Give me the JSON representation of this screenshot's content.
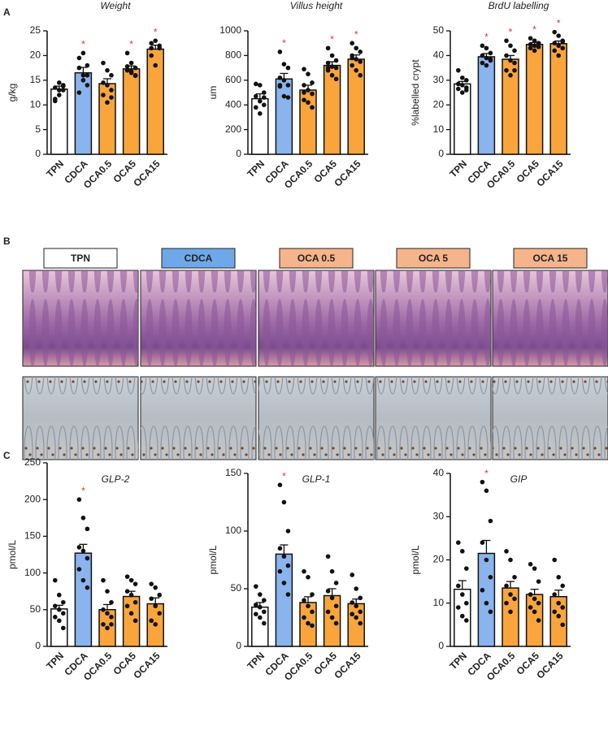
{
  "panel_letters": [
    "A",
    "B",
    "C"
  ],
  "histology": {
    "labels": [
      "TPN",
      "CDCA",
      "OCA 0.5",
      "OCA 5",
      "OCA 15"
    ],
    "label_colors": [
      "#ffffff",
      "#6fa8e8",
      "#f6b48c",
      "#f6b48c",
      "#f6b48c"
    ]
  },
  "chart_data": [
    {
      "type": "bar",
      "title": "Weight",
      "ylabel": "g/kg",
      "categories": [
        "TPN",
        "CDCA",
        "OCA0.5",
        "OCA5",
        "OCA15"
      ],
      "values": [
        13.2,
        16.5,
        14.3,
        17.3,
        21.3
      ],
      "errors": [
        0.6,
        1.1,
        1.0,
        0.6,
        0.8
      ],
      "points": [
        [
          13.5,
          12,
          14,
          10.8,
          13,
          13.8,
          11.2,
          14.5,
          13
        ],
        [
          19.5,
          20.5,
          18,
          17.5,
          16,
          14,
          12.5,
          15,
          16
        ],
        [
          18.5,
          17,
          16,
          14.5,
          14,
          13,
          12,
          10.5,
          11.5
        ],
        [
          20.5,
          18.5,
          17.5,
          17,
          16.5,
          16,
          17.8,
          16.8,
          15.9
        ],
        [
          22.5,
          23,
          21.5,
          20,
          18,
          22,
          21.5
        ]
      ],
      "significance": [
        null,
        "*",
        null,
        "*",
        "*"
      ],
      "colors": [
        "#ffffff",
        "#8ab4ee",
        "#f9a53c",
        "#f9a53c",
        "#f9a53c"
      ],
      "significance_color": "#e8312f",
      "ylim": [
        0,
        25
      ],
      "yticks": [
        0,
        5,
        10,
        15,
        20,
        25
      ]
    },
    {
      "type": "bar",
      "title": "Villus height",
      "ylabel": "um",
      "categories": [
        "TPN",
        "CDCA",
        "OCA0.5",
        "OCA5",
        "OCA15"
      ],
      "values": [
        450,
        610,
        520,
        720,
        770
      ],
      "errors": [
        40,
        45,
        40,
        30,
        35
      ],
      "points": [
        [
          570,
          560,
          500,
          470,
          430,
          400,
          380,
          330,
          460
        ],
        [
          830,
          730,
          700,
          620,
          600,
          560,
          550,
          470,
          460,
          560
        ],
        [
          690,
          650,
          580,
          560,
          520,
          490,
          440,
          420,
          380,
          500
        ],
        [
          860,
          800,
          760,
          740,
          710,
          700,
          680,
          640,
          610,
          700
        ],
        [
          900,
          860,
          830,
          800,
          770,
          750,
          720,
          680,
          640,
          780
        ]
      ],
      "significance": [
        null,
        "*",
        null,
        "*",
        "*"
      ],
      "colors": [
        "#ffffff",
        "#8ab4ee",
        "#f9a53c",
        "#f9a53c",
        "#f9a53c"
      ],
      "significance_color": "#e8312f",
      "ylim": [
        0,
        1000
      ],
      "yticks": [
        0,
        200,
        400,
        600,
        800,
        1000
      ]
    },
    {
      "type": "bar",
      "title": "BrdU labelling",
      "ylabel": "%labelled crypt",
      "categories": [
        "TPN",
        "CDCA",
        "OCA0.5",
        "OCA5",
        "OCA15"
      ],
      "values": [
        28.5,
        39.5,
        38.5,
        44.5,
        44.8
      ],
      "errors": [
        1.0,
        1.3,
        1.5,
        0.8,
        1.1
      ],
      "points": [
        [
          34,
          31,
          30,
          28.5,
          28,
          27,
          26.5,
          25,
          26
        ],
        [
          44,
          43,
          41,
          40,
          39,
          38.5,
          37,
          36,
          38
        ],
        [
          46,
          44,
          42,
          40,
          38,
          37,
          34,
          32,
          34
        ],
        [
          47,
          46,
          45,
          44.5,
          44,
          43.5,
          43,
          42,
          45
        ],
        [
          49.5,
          48,
          46,
          45,
          44,
          43,
          42,
          40,
          45.5
        ]
      ],
      "significance": [
        null,
        "*",
        "*",
        "*",
        "*"
      ],
      "colors": [
        "#ffffff",
        "#8ab4ee",
        "#f9a53c",
        "#f9a53c",
        "#f9a53c"
      ],
      "significance_color": "#e8312f",
      "ylim": [
        0,
        50
      ],
      "yticks": [
        0,
        10,
        20,
        30,
        40,
        50
      ]
    },
    {
      "type": "bar",
      "title": "GLP-2",
      "ylabel": "pmol/L",
      "categories": [
        "TPN",
        "CDCA",
        "OCA0.5",
        "OCA5",
        "OCA15"
      ],
      "values": [
        51,
        127,
        50,
        68,
        58
      ],
      "errors": [
        5,
        12,
        7,
        7,
        8
      ],
      "points": [
        [
          90,
          70,
          60,
          55,
          50,
          45,
          40,
          35,
          25
        ],
        [
          200,
          175,
          160,
          135,
          130,
          120,
          105,
          90,
          80
        ],
        [
          90,
          75,
          60,
          50,
          45,
          40,
          30,
          25,
          30
        ],
        [
          95,
          90,
          85,
          75,
          70,
          60,
          55,
          45,
          35
        ],
        [
          85,
          80,
          70,
          65,
          55,
          45,
          35,
          30
        ]
      ],
      "significance": [
        null,
        "*",
        null,
        null,
        null
      ],
      "colors": [
        "#ffffff",
        "#8ab4ee",
        "#f9a53c",
        "#f9a53c",
        "#f9a53c"
      ],
      "significance_color": "#e8312f",
      "ylim": [
        0,
        250
      ],
      "yticks": [
        0,
        50,
        100,
        150,
        200,
        250
      ]
    },
    {
      "type": "bar",
      "title": "GLP-1",
      "ylabel": "pmol/L",
      "categories": [
        "TPN",
        "CDCA",
        "OCA0.5",
        "OCA5",
        "OCA15"
      ],
      "values": [
        34,
        80,
        38,
        44,
        37
      ],
      "errors": [
        4,
        8,
        5,
        6,
        4
      ],
      "points": [
        [
          52,
          45,
          40,
          36,
          34,
          30,
          28,
          25,
          20
        ],
        [
          140,
          125,
          100,
          85,
          78,
          70,
          65,
          55,
          45
        ],
        [
          65,
          60,
          45,
          40,
          35,
          30,
          25,
          20,
          18
        ],
        [
          78,
          65,
          55,
          48,
          42,
          35,
          30,
          25,
          20
        ],
        [
          62,
          50,
          42,
          38,
          35,
          30,
          28,
          25,
          20
        ]
      ],
      "significance": [
        null,
        "*",
        null,
        null,
        null
      ],
      "colors": [
        "#ffffff",
        "#8ab4ee",
        "#f9a53c",
        "#f9a53c",
        "#f9a53c"
      ],
      "significance_color": "#e8312f",
      "ylim": [
        0,
        150
      ],
      "yticks": [
        0,
        50,
        100,
        150
      ]
    },
    {
      "type": "bar",
      "title": "GIP",
      "ylabel": "pmol/L",
      "categories": [
        "TPN",
        "CDCA",
        "OCA0.5",
        "OCA5",
        "OCA15"
      ],
      "values": [
        13.2,
        21.5,
        13.5,
        12,
        11.5
      ],
      "errors": [
        2,
        3,
        1.5,
        1.2,
        1.5
      ],
      "points": [
        [
          24,
          22,
          18,
          14,
          12,
          10,
          9,
          7,
          6
        ],
        [
          38,
          36,
          29,
          24,
          20,
          16,
          13,
          10,
          8
        ],
        [
          22,
          20,
          16,
          14,
          12,
          11,
          10,
          8
        ],
        [
          19,
          18,
          15,
          12,
          11,
          10,
          9,
          8,
          6
        ],
        [
          20,
          16,
          14,
          12,
          10,
          9,
          8,
          7,
          5
        ]
      ],
      "significance": [
        null,
        "*",
        null,
        null,
        null
      ],
      "colors": [
        "#ffffff",
        "#8ab4ee",
        "#f9a53c",
        "#f9a53c",
        "#f9a53c"
      ],
      "significance_color": "#e8312f",
      "ylim": [
        0,
        40
      ],
      "yticks": [
        0,
        10,
        20,
        30,
        40
      ]
    }
  ]
}
